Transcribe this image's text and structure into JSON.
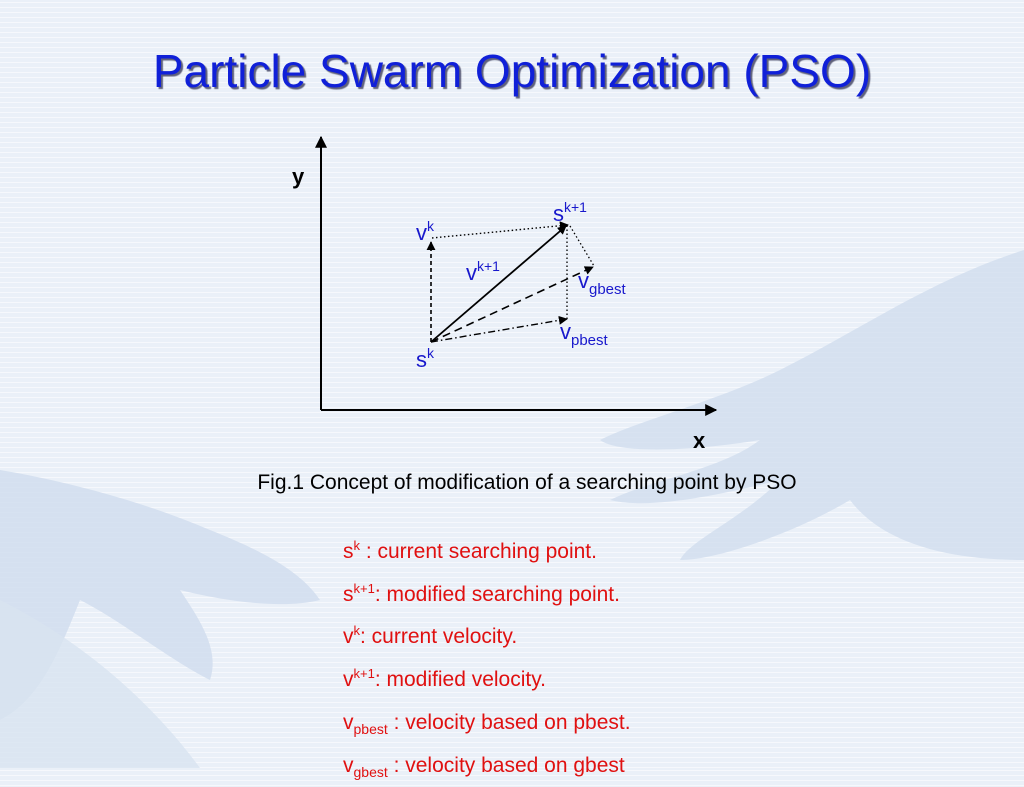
{
  "slide": {
    "title": "Particle Swarm Optimization (PSO)",
    "caption": "Fig.1 Concept of modification of a searching point by PSO"
  },
  "diagram": {
    "axis_x": "x",
    "axis_y": "y",
    "labels": {
      "sk_base": "s",
      "sk_sup": "k",
      "skp1_base": "s",
      "skp1_sup": "k+1",
      "vk_base": "v",
      "vk_sup": "k",
      "vkp1_base": "v",
      "vkp1_sup": "k+1",
      "vgbest_base": "v",
      "vgbest_sub": "gbest",
      "vpbest_base": "v",
      "vpbest_sub": "pbest"
    }
  },
  "legend": [
    {
      "base": "s",
      "sup": "k",
      "sub": "",
      "text": " :  current searching point."
    },
    {
      "base": "s",
      "sup": "k+1",
      "sub": "",
      "text": ": modified searching point."
    },
    {
      "base": "v",
      "sup": "k",
      "sub": "",
      "text": ": current velocity."
    },
    {
      "base": "v",
      "sup": "k+1",
      "sub": "",
      "text": ": modified velocity."
    },
    {
      "base": "v",
      "sup": "",
      "sub": "pbest",
      "text": " : velocity based on pbest."
    },
    {
      "base": "v",
      "sup": "",
      "sub": "gbest",
      "text": " : velocity based on gbest"
    }
  ],
  "colors": {
    "title": "#1020d8",
    "diagram_label": "#1818cc",
    "legend_text": "#e01010",
    "background": "#eaf0f8"
  }
}
